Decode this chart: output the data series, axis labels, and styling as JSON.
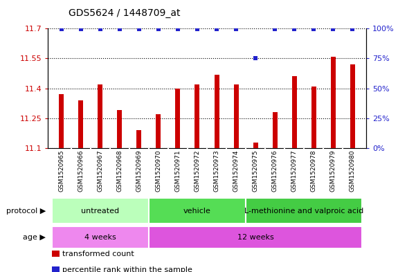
{
  "title": "GDS5624 / 1448709_at",
  "samples": [
    "GSM1520965",
    "GSM1520966",
    "GSM1520967",
    "GSM1520968",
    "GSM1520969",
    "GSM1520970",
    "GSM1520971",
    "GSM1520972",
    "GSM1520973",
    "GSM1520974",
    "GSM1520975",
    "GSM1520976",
    "GSM1520977",
    "GSM1520978",
    "GSM1520979",
    "GSM1520980"
  ],
  "bar_values": [
    11.37,
    11.34,
    11.42,
    11.29,
    11.19,
    11.27,
    11.4,
    11.42,
    11.47,
    11.42,
    11.13,
    11.28,
    11.46,
    11.41,
    11.56,
    11.52
  ],
  "percentile_values": [
    100,
    100,
    100,
    100,
    100,
    100,
    100,
    100,
    100,
    100,
    75,
    100,
    100,
    100,
    100,
    100
  ],
  "bar_color": "#cc0000",
  "dot_color": "#2222cc",
  "ylim_left": [
    11.1,
    11.7
  ],
  "yticks_left": [
    11.1,
    11.25,
    11.4,
    11.55,
    11.7
  ],
  "yticks_right": [
    0,
    25,
    50,
    75,
    100
  ],
  "ylim_right": [
    0,
    100
  ],
  "protocol_groups": [
    {
      "label": "untreated",
      "start": 0,
      "end": 4,
      "color": "#bbffbb"
    },
    {
      "label": "vehicle",
      "start": 5,
      "end": 9,
      "color": "#55dd55"
    },
    {
      "label": "L-methionine and valproic acid",
      "start": 10,
      "end": 15,
      "color": "#44cc44"
    }
  ],
  "age_groups": [
    {
      "label": "4 weeks",
      "start": 0,
      "end": 4,
      "color": "#ee88ee"
    },
    {
      "label": "12 weeks",
      "start": 5,
      "end": 15,
      "color": "#dd55dd"
    }
  ],
  "bar_bottom": 11.1,
  "bar_width": 0.25,
  "left_tick_color": "#cc0000",
  "right_tick_color": "#2222cc",
  "legend_items": [
    {
      "color": "#cc0000",
      "label": "transformed count"
    },
    {
      "color": "#2222cc",
      "label": "percentile rank within the sample"
    }
  ]
}
